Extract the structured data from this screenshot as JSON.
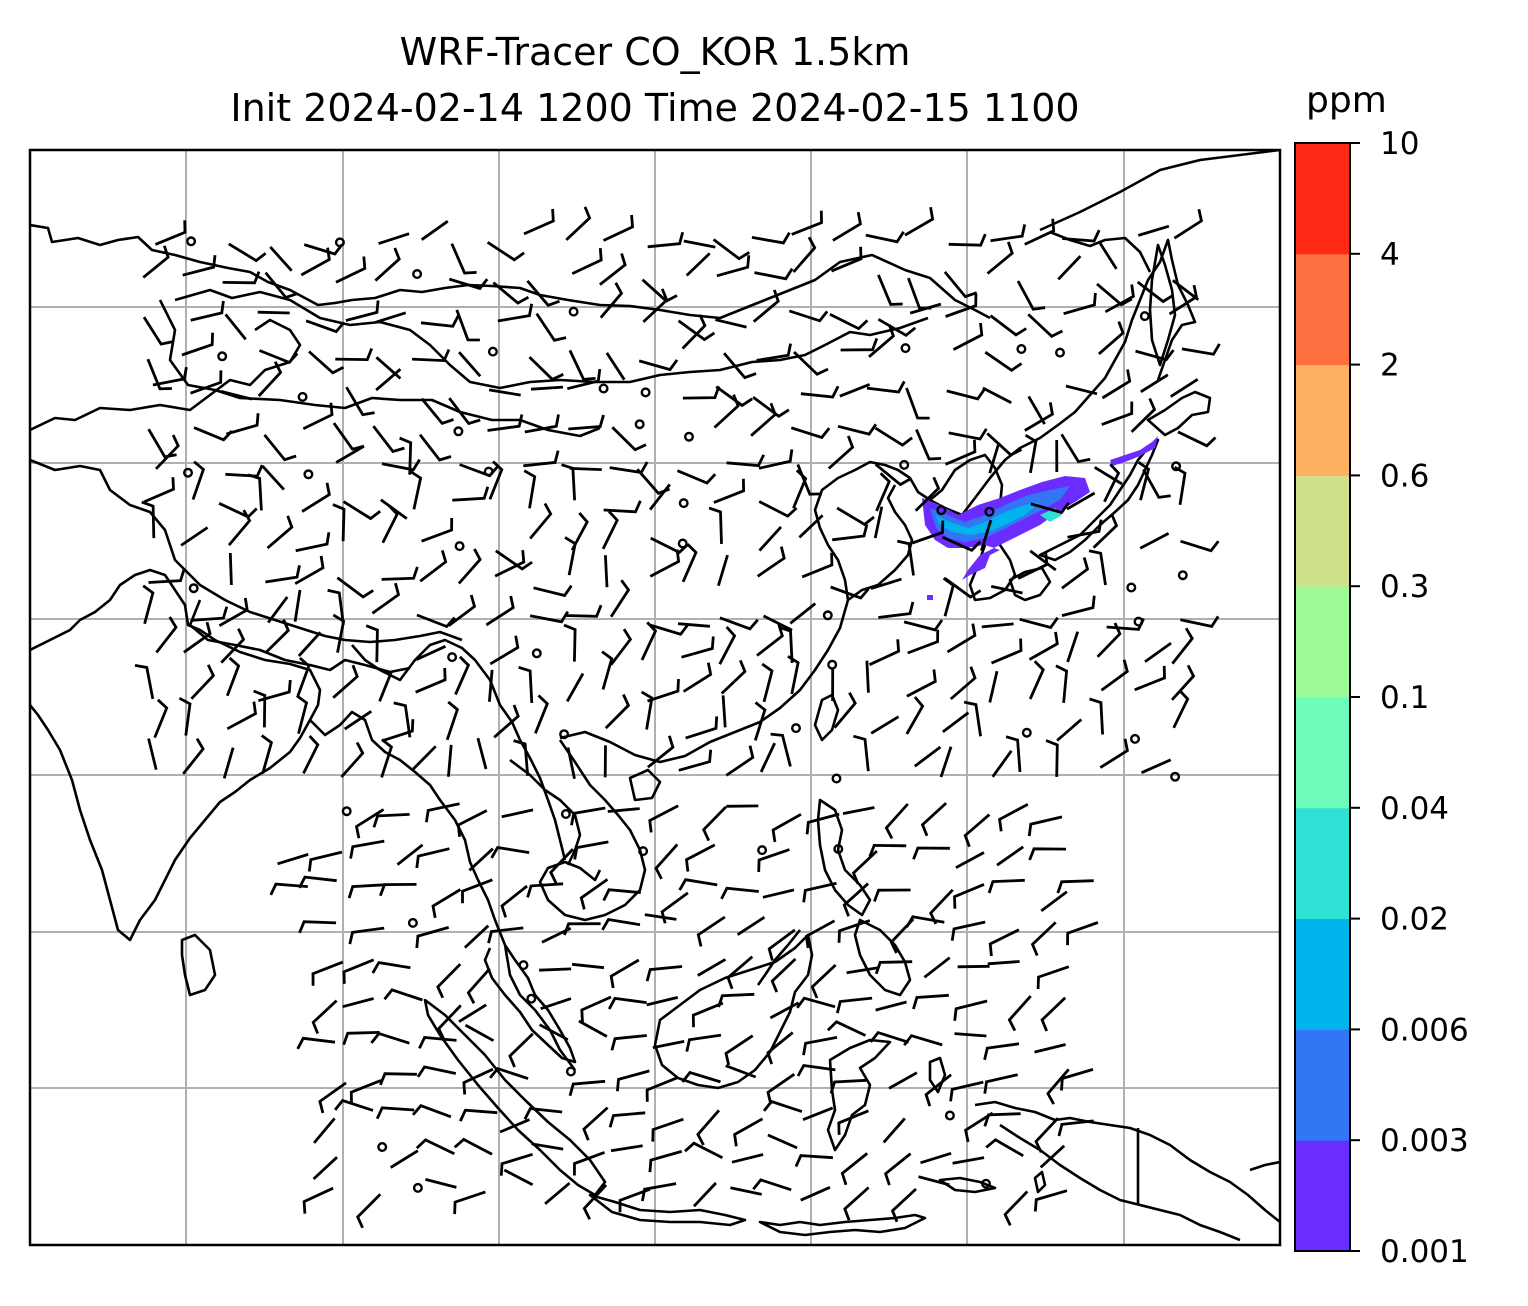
{
  "title": {
    "line1": "WRF-Tracer CO_KOR 1.5km",
    "line2": "Init 2024-02-14 1200 Time 2024-02-15 1100"
  },
  "colorbar": {
    "unit": "ppm",
    "levels": [
      "0.001",
      "0.003",
      "0.006",
      "0.02",
      "0.04",
      "0.1",
      "0.3",
      "0.6",
      "2",
      "4",
      "10"
    ],
    "colors": [
      "#6a2cff",
      "#3276f5",
      "#00b4ec",
      "#2fe0d4",
      "#6dfcbc",
      "#9cfa98",
      "#cfe08a",
      "#fdb062",
      "#ff7040",
      "#ff2a16"
    ]
  },
  "map": {
    "coastline_color": "#000000",
    "gridline_color": "#b0b0b0",
    "calm_symbol": "circle",
    "wind_symbol": "wind-barb"
  }
}
